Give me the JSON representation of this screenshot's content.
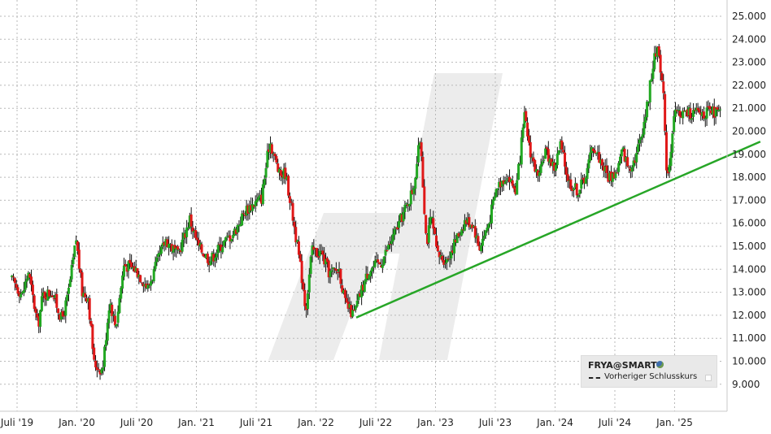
{
  "chart_data": {
    "type": "candlestick",
    "symbol": "FRYA@SMART",
    "legend": {
      "title": "FRYA@SMART",
      "title_icon": "globe-icon",
      "item_label": "Vorheriger Schlusskurs",
      "placement": "bottom-right"
    },
    "x_labels": [
      "Juli '19",
      "Jan. '20",
      "Juli '20",
      "Jan. '21",
      "Juli '21",
      "Jan. '22",
      "Juli '22",
      "Jan. '23",
      "Juli '23",
      "Jan. '24",
      "Juli '24",
      "Jan. '25"
    ],
    "y_ticks": [
      9,
      10,
      11,
      12,
      13,
      14,
      15,
      16,
      17,
      18,
      19,
      20,
      21,
      22,
      23,
      24,
      25
    ],
    "y_tick_labels": [
      "9.000",
      "10.000",
      "11.000",
      "12.000",
      "13.000",
      "14.000",
      "15.000",
      "16.000",
      "17.000",
      "18.000",
      "19.000",
      "20.000",
      "21.000",
      "22.000",
      "23.000",
      "24.000",
      "25.000"
    ],
    "ylim": [
      8.2,
      25.5
    ],
    "xlim": [
      2019.45,
      2025.72
    ],
    "y_axis_position": "right",
    "grid": true,
    "colors": {
      "up": "#22a822",
      "down": "#e01818",
      "wick": "#111111",
      "trendline": "#27a627",
      "background": "#ffffff"
    },
    "trendline": {
      "start": [
        2022.33,
        11.9
      ],
      "end": [
        2025.71,
        19.55
      ]
    },
    "anchors": [
      [
        2019.45,
        13.6
      ],
      [
        2019.55,
        12.9
      ],
      [
        2019.6,
        13.9
      ],
      [
        2019.68,
        11.5
      ],
      [
        2019.72,
        12.9
      ],
      [
        2019.8,
        13.0
      ],
      [
        2019.88,
        11.8
      ],
      [
        2019.93,
        12.8
      ],
      [
        2020.0,
        15.3
      ],
      [
        2020.05,
        13.0
      ],
      [
        2020.1,
        12.8
      ],
      [
        2020.15,
        9.9
      ],
      [
        2020.22,
        9.6
      ],
      [
        2020.28,
        12.7
      ],
      [
        2020.33,
        11.5
      ],
      [
        2020.4,
        14.2
      ],
      [
        2020.5,
        14.0
      ],
      [
        2020.6,
        13.2
      ],
      [
        2020.7,
        14.6
      ],
      [
        2020.75,
        15.3
      ],
      [
        2020.85,
        14.6
      ],
      [
        2020.95,
        16.2
      ],
      [
        2021.02,
        15.0
      ],
      [
        2021.12,
        14.4
      ],
      [
        2021.22,
        15.1
      ],
      [
        2021.32,
        15.6
      ],
      [
        2021.42,
        16.6
      ],
      [
        2021.55,
        17.1
      ],
      [
        2021.62,
        19.6
      ],
      [
        2021.7,
        18.1
      ],
      [
        2021.75,
        18.2
      ],
      [
        2021.8,
        16.7
      ],
      [
        2021.85,
        15.0
      ],
      [
        2021.9,
        13.2
      ],
      [
        2021.92,
        12.2
      ],
      [
        2021.97,
        14.8
      ],
      [
        2022.05,
        14.7
      ],
      [
        2022.12,
        13.8
      ],
      [
        2022.2,
        14.0
      ],
      [
        2022.25,
        12.5
      ],
      [
        2022.32,
        12.0
      ],
      [
        2022.38,
        13.0
      ],
      [
        2022.45,
        14.0
      ],
      [
        2022.55,
        14.3
      ],
      [
        2022.65,
        15.4
      ],
      [
        2022.75,
        16.6
      ],
      [
        2022.82,
        17.5
      ],
      [
        2022.88,
        19.8
      ],
      [
        2022.9,
        17.8
      ],
      [
        2022.93,
        15.1
      ],
      [
        2022.97,
        16.3
      ],
      [
        2023.02,
        14.6
      ],
      [
        2023.1,
        14.4
      ],
      [
        2023.18,
        15.3
      ],
      [
        2023.25,
        16.1
      ],
      [
        2023.32,
        16.0
      ],
      [
        2023.37,
        14.9
      ],
      [
        2023.45,
        16.0
      ],
      [
        2023.52,
        17.6
      ],
      [
        2023.6,
        18.1
      ],
      [
        2023.68,
        17.4
      ],
      [
        2023.75,
        20.6
      ],
      [
        2023.8,
        19.1
      ],
      [
        2023.87,
        17.8
      ],
      [
        2023.92,
        19.2
      ],
      [
        2024.0,
        18.4
      ],
      [
        2024.05,
        19.4
      ],
      [
        2024.12,
        17.8
      ],
      [
        2024.2,
        17.4
      ],
      [
        2024.27,
        18.2
      ],
      [
        2024.32,
        19.4
      ],
      [
        2024.4,
        18.6
      ],
      [
        2024.45,
        18.0
      ],
      [
        2024.52,
        18.2
      ],
      [
        2024.57,
        19.2
      ],
      [
        2024.62,
        18.4
      ],
      [
        2024.68,
        18.9
      ],
      [
        2024.72,
        19.7
      ],
      [
        2024.78,
        21.2
      ],
      [
        2024.82,
        22.8
      ],
      [
        2024.87,
        23.8
      ],
      [
        2024.92,
        21.0
      ],
      [
        2024.94,
        18.0
      ],
      [
        2024.97,
        19.0
      ],
      [
        2025.0,
        20.5
      ],
      [
        2025.02,
        20.8
      ]
    ]
  }
}
